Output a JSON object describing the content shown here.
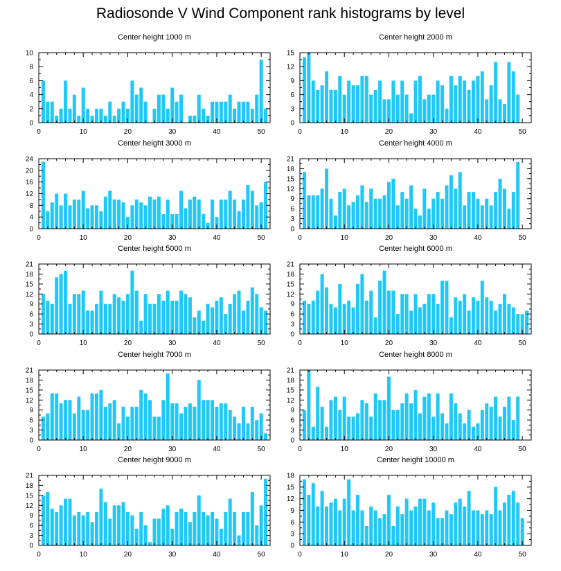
{
  "title": "Radiosonde V Wind Component rank histograms by level",
  "colors": {
    "bar": "#1ec8f8",
    "axis": "#000000"
  },
  "chart_data": [
    {
      "type": "bar",
      "title": "Center height 1000 m",
      "xlim": [
        0,
        52
      ],
      "ylim": [
        0,
        10
      ],
      "xticks": [
        0,
        10,
        20,
        30,
        40,
        50
      ],
      "yticks": [
        0,
        2,
        4,
        6,
        8,
        10
      ],
      "values": [
        6,
        3,
        3,
        1,
        2,
        6,
        2,
        4,
        1,
        5,
        2,
        1,
        2,
        2,
        1,
        3,
        1,
        2,
        3,
        2,
        6,
        4,
        5,
        3,
        0,
        2,
        4,
        4,
        2,
        5,
        3,
        4,
        0,
        1,
        1,
        4,
        2,
        1,
        3,
        3,
        3,
        3,
        4,
        2,
        3,
        3,
        3,
        2,
        4,
        9,
        2
      ]
    },
    {
      "type": "bar",
      "title": "Center height 2000 m",
      "xlim": [
        0,
        52
      ],
      "ylim": [
        0,
        15
      ],
      "xticks": [
        0,
        10,
        20,
        30,
        40,
        50
      ],
      "yticks": [
        0,
        3,
        6,
        9,
        12,
        15
      ],
      "values": [
        14,
        15,
        9,
        7,
        8,
        11,
        7,
        7,
        10,
        6,
        9,
        8,
        8,
        10,
        10,
        6,
        7,
        9,
        5,
        5,
        9,
        6,
        9,
        6,
        2,
        9,
        10,
        5,
        6,
        6,
        9,
        8,
        3,
        10,
        8,
        10,
        9,
        7,
        9,
        10,
        11,
        5,
        8,
        13,
        5,
        4,
        13,
        11,
        6
      ]
    },
    {
      "type": "bar",
      "title": "Center height 3000 m",
      "xlim": [
        0,
        52
      ],
      "ylim": [
        0,
        24
      ],
      "xticks": [
        0,
        10,
        20,
        30,
        40,
        50
      ],
      "yticks": [
        0,
        4,
        8,
        12,
        16,
        20,
        24
      ],
      "values": [
        23,
        6,
        9,
        12,
        8,
        12,
        8,
        10,
        10,
        13,
        7,
        8,
        8,
        6,
        11,
        13,
        10,
        10,
        9,
        4,
        8,
        10,
        9,
        8,
        11,
        10,
        11,
        5,
        10,
        5,
        5,
        13,
        7,
        10,
        11,
        10,
        5,
        2,
        10,
        4,
        10,
        10,
        13,
        10,
        6,
        10,
        15,
        13,
        8,
        9,
        16
      ]
    },
    {
      "type": "bar",
      "title": "Center height 4000 m",
      "xlim": [
        0,
        52
      ],
      "ylim": [
        0,
        21
      ],
      "xticks": [
        0,
        10,
        20,
        30,
        40,
        50
      ],
      "yticks": [
        0,
        3,
        6,
        9,
        12,
        15,
        18,
        21
      ],
      "values": [
        17,
        10,
        10,
        10,
        12,
        18,
        9,
        4,
        11,
        12,
        7,
        8,
        10,
        13,
        8,
        12,
        9,
        9,
        10,
        14,
        15,
        7,
        11,
        9,
        13,
        6,
        4,
        12,
        6,
        9,
        11,
        9,
        13,
        16,
        12,
        17,
        7,
        11,
        11,
        9,
        7,
        9,
        7,
        11,
        15,
        12,
        6,
        11,
        20
      ]
    },
    {
      "type": "bar",
      "title": "Center height 5000 m",
      "xlim": [
        0,
        52
      ],
      "ylim": [
        0,
        21
      ],
      "xticks": [
        0,
        10,
        20,
        30,
        40,
        50
      ],
      "yticks": [
        0,
        3,
        6,
        9,
        12,
        15,
        18,
        21
      ],
      "values": [
        12,
        10,
        9,
        17,
        18,
        19,
        9,
        12,
        12,
        13,
        7,
        7,
        9,
        13,
        9,
        9,
        12,
        11,
        10,
        12,
        19,
        13,
        4,
        12,
        9,
        9,
        12,
        10,
        13,
        10,
        10,
        13,
        12,
        11,
        5,
        7,
        4,
        9,
        8,
        10,
        11,
        6,
        9,
        12,
        13,
        7,
        10,
        14,
        12,
        8,
        7
      ]
    },
    {
      "type": "bar",
      "title": "Center height 6000 m",
      "xlim": [
        0,
        52
      ],
      "ylim": [
        0,
        21
      ],
      "xticks": [
        0,
        10,
        20,
        30,
        40,
        50
      ],
      "yticks": [
        0,
        3,
        6,
        9,
        12,
        15,
        18,
        21
      ],
      "values": [
        10,
        9,
        10,
        13,
        18,
        14,
        9,
        8,
        15,
        9,
        10,
        8,
        15,
        18,
        10,
        13,
        5,
        16,
        19,
        13,
        13,
        6,
        12,
        12,
        7,
        12,
        8,
        9,
        12,
        12,
        9,
        16,
        16,
        5,
        11,
        10,
        12,
        7,
        11,
        10,
        16,
        11,
        10,
        7,
        9,
        12,
        9,
        8,
        6,
        6,
        7
      ]
    },
    {
      "type": "bar",
      "title": "Center height 7000 m",
      "xlim": [
        0,
        52
      ],
      "ylim": [
        0,
        21
      ],
      "xticks": [
        0,
        10,
        20,
        30,
        40,
        50
      ],
      "yticks": [
        0,
        3,
        6,
        9,
        12,
        15,
        18,
        21
      ],
      "values": [
        7,
        8,
        14,
        14,
        11,
        12,
        12,
        8,
        13,
        9,
        9,
        14,
        14,
        15,
        10,
        11,
        12,
        5,
        10,
        7,
        10,
        10,
        15,
        14,
        12,
        7,
        7,
        12,
        20,
        11,
        11,
        8,
        10,
        11,
        10,
        18,
        12,
        12,
        12,
        10,
        11,
        11,
        9,
        7,
        5,
        10,
        5,
        10,
        6,
        8,
        2
      ]
    },
    {
      "type": "bar",
      "title": "Center height 8000 m",
      "xlim": [
        0,
        52
      ],
      "ylim": [
        0,
        21
      ],
      "xticks": [
        0,
        10,
        20,
        30,
        40,
        50
      ],
      "yticks": [
        0,
        3,
        6,
        9,
        12,
        15,
        18,
        21
      ],
      "values": [
        9,
        21,
        4,
        16,
        10,
        4,
        12,
        13,
        9,
        13,
        7,
        7,
        8,
        12,
        11,
        7,
        14,
        12,
        12,
        19,
        9,
        9,
        11,
        14,
        11,
        15,
        8,
        13,
        14,
        7,
        14,
        8,
        5,
        14,
        11,
        8,
        5,
        9,
        4,
        5,
        9,
        11,
        10,
        13,
        7,
        10,
        13,
        6,
        13
      ]
    },
    {
      "type": "bar",
      "title": "Center height 9000 m",
      "xlim": [
        0,
        52
      ],
      "ylim": [
        0,
        21
      ],
      "xticks": [
        0,
        10,
        20,
        30,
        40,
        50
      ],
      "yticks": [
        0,
        3,
        6,
        9,
        12,
        15,
        18,
        21
      ],
      "values": [
        15,
        16,
        11,
        10,
        12,
        14,
        14,
        9,
        10,
        9,
        10,
        7,
        10,
        17,
        13,
        8,
        12,
        12,
        13,
        10,
        9,
        5,
        10,
        6,
        1,
        8,
        8,
        11,
        12,
        5,
        10,
        11,
        10,
        7,
        10,
        15,
        10,
        9,
        10,
        8,
        5,
        10,
        14,
        10,
        3,
        10,
        10,
        16,
        6,
        12,
        20
      ]
    },
    {
      "type": "bar",
      "title": "Center height 10000 m",
      "xlim": [
        0,
        52
      ],
      "ylim": [
        0,
        18
      ],
      "xticks": [
        0,
        10,
        20,
        30,
        40,
        50
      ],
      "yticks": [
        0,
        3,
        6,
        9,
        12,
        15,
        18
      ],
      "values": [
        17,
        13,
        16,
        10,
        14,
        10,
        11,
        12,
        9,
        12,
        17,
        9,
        13,
        9,
        5,
        10,
        9,
        7,
        8,
        13,
        5,
        10,
        8,
        12,
        9,
        10,
        12,
        12,
        9,
        11,
        7,
        7,
        9,
        8,
        11,
        12,
        10,
        14,
        9,
        9,
        8,
        9,
        8,
        15,
        9,
        11,
        13,
        14,
        11,
        7
      ]
    }
  ]
}
